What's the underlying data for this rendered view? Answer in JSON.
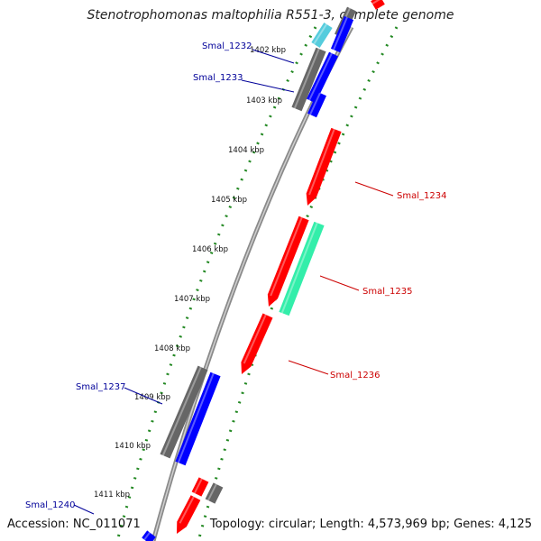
{
  "title": "Stenotrophomonas maltophilia R551-3, complete genome",
  "accession": "Accession: NC_011071",
  "topology": "Topology: circular; Length: 4,573,969 bp; Genes: 4,125",
  "colors": {
    "forward_gene": "#ff0000",
    "reverse_gene": "#0000ff",
    "rna_gene": "#33eeaa",
    "other_gene": "#666666",
    "light_gene": "#55ccdd",
    "backbone": "#888888",
    "ticks": "#228822",
    "label_left": "#000099",
    "label_right": "#cc0000"
  },
  "kbp_labels": [
    "1402 kbp",
    "1403 kbp",
    "1404 kbp",
    "1405 kbp",
    "1406 kbp",
    "1407 kbp",
    "1408 kbp",
    "1409 kbp",
    "1410 kbp",
    "1411 kbp"
  ],
  "gene_labels": [
    {
      "text": "Smal_1232",
      "side": "left"
    },
    {
      "text": "Smal_1233",
      "side": "left"
    },
    {
      "text": "Smal_1234",
      "side": "right"
    },
    {
      "text": "Smal_1235",
      "side": "right"
    },
    {
      "text": "Smal_1236",
      "side": "right"
    },
    {
      "text": "Smal_1237",
      "side": "left"
    },
    {
      "text": "Smal_1240",
      "side": "left"
    }
  ]
}
